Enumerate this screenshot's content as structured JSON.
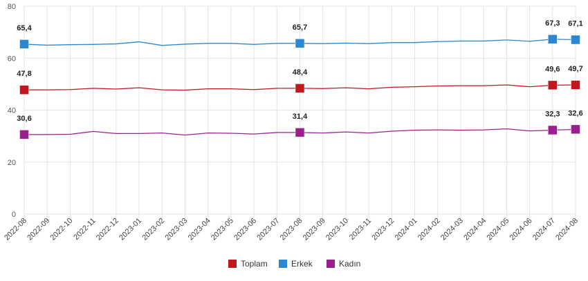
{
  "chart_data": {
    "type": "line",
    "categories": [
      "2022-08",
      "2022-09",
      "2022-10",
      "2022-11",
      "2022-12",
      "2023-01",
      "2023-02",
      "2023-03",
      "2023-04",
      "2023-05",
      "2023-06",
      "2023-07",
      "2023-08",
      "2023-09",
      "2023-10",
      "2023-11",
      "2023-12",
      "2024-01",
      "2024-02",
      "2024-03",
      "2024-04",
      "2024-05",
      "2024-06",
      "2024-07",
      "2024-08"
    ],
    "ylim": [
      0,
      80
    ],
    "yticks": [
      0,
      20,
      40,
      60,
      80
    ],
    "grid": true,
    "legend_position": "bottom",
    "labeled_indices": [
      0,
      12,
      23,
      24
    ],
    "series": [
      {
        "name": "Toplam",
        "color": "#c0181c",
        "values": [
          47.8,
          47.8,
          47.9,
          48.4,
          48.1,
          48.6,
          47.8,
          47.7,
          48.2,
          48.2,
          47.9,
          48.4,
          48.4,
          48.3,
          48.6,
          48.2,
          48.8,
          49.0,
          49.3,
          49.4,
          49.4,
          49.7,
          49.0,
          49.6,
          49.7
        ],
        "labels": [
          "47,8",
          "48,4",
          "49,6",
          "49,7"
        ]
      },
      {
        "name": "Erkek",
        "color": "#2b87d1",
        "values": [
          65.4,
          65.0,
          65.2,
          65.3,
          65.5,
          66.3,
          64.9,
          65.4,
          65.7,
          65.7,
          65.3,
          65.7,
          65.7,
          65.6,
          65.8,
          65.6,
          66.0,
          66.0,
          66.4,
          66.6,
          66.6,
          67.0,
          66.5,
          67.3,
          67.1
        ],
        "labels": [
          "65,4",
          "65,7",
          "67,3",
          "67,1"
        ]
      },
      {
        "name": "Kadın",
        "color": "#9c1f8f",
        "values": [
          30.6,
          30.6,
          30.7,
          31.8,
          31.0,
          31.0,
          31.2,
          30.4,
          31.2,
          31.1,
          30.8,
          31.4,
          31.4,
          31.2,
          31.6,
          31.2,
          31.9,
          32.3,
          32.4,
          32.3,
          32.4,
          32.8,
          32.0,
          32.3,
          32.6
        ],
        "labels": [
          "30,6",
          "31,4",
          "32,3",
          "32,6"
        ]
      }
    ]
  }
}
